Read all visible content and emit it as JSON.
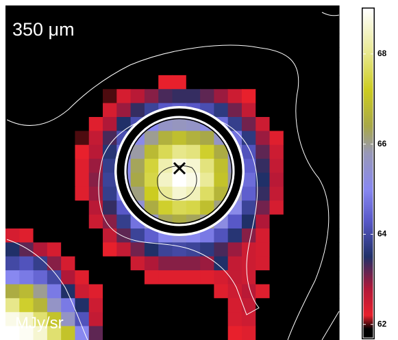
{
  "chart_data": {
    "type": "heatmap",
    "title": "350 μm",
    "colorbar_label": "MJy/sr",
    "zlim": [
      61.7,
      69.0
    ],
    "colorbar_ticks": [
      62,
      64,
      66,
      68
    ],
    "colormap": [
      {
        "value": 61.9,
        "color": "#000000"
      },
      {
        "value": 62.2,
        "color": "#e8202c"
      },
      {
        "value": 62.8,
        "color": "#b01838"
      },
      {
        "value": 63.5,
        "color": "#203068"
      },
      {
        "value": 64.3,
        "color": "#5858c8"
      },
      {
        "value": 65.0,
        "color": "#8888f0"
      },
      {
        "value": 65.8,
        "color": "#9898b8"
      },
      {
        "value": 66.4,
        "color": "#a8a848"
      },
      {
        "value": 67.2,
        "color": "#cccc20"
      },
      {
        "value": 68.1,
        "color": "#eaea98"
      },
      {
        "value": 69.0,
        "color": "#ffffff"
      }
    ],
    "z": [
      [
        61.5,
        61.5,
        61.5,
        61.5,
        61.5,
        61.5,
        61.5,
        61.5,
        61.5,
        61.5,
        61.5,
        61.5,
        61.5,
        61.5,
        61.5,
        61.5,
        61.5,
        61.5,
        61.5,
        61.5,
        61.5,
        61.5,
        61.5,
        61.5
      ],
      [
        61.5,
        61.5,
        61.5,
        61.5,
        61.5,
        61.5,
        61.5,
        61.5,
        61.5,
        61.5,
        61.5,
        61.5,
        61.5,
        61.5,
        61.5,
        61.5,
        61.5,
        61.5,
        61.5,
        61.5,
        61.5,
        61.5,
        61.5,
        61.5
      ],
      [
        61.5,
        61.5,
        61.5,
        61.5,
        61.5,
        61.5,
        61.5,
        61.5,
        61.5,
        61.5,
        61.5,
        61.5,
        61.5,
        61.5,
        61.5,
        61.5,
        61.5,
        61.5,
        61.5,
        61.5,
        61.5,
        61.5,
        61.5,
        61.5
      ],
      [
        61.5,
        61.5,
        61.5,
        61.5,
        61.5,
        61.5,
        61.5,
        61.5,
        61.5,
        61.5,
        61.5,
        61.5,
        61.5,
        61.5,
        61.5,
        61.5,
        61.5,
        61.5,
        61.5,
        61.5,
        61.5,
        61.5,
        61.5,
        61.5
      ],
      [
        61.5,
        61.5,
        61.5,
        61.5,
        61.5,
        61.5,
        61.5,
        61.5,
        61.5,
        61.5,
        61.5,
        61.5,
        61.5,
        61.5,
        61.5,
        61.5,
        61.5,
        61.5,
        61.5,
        61.5,
        61.5,
        61.5,
        61.5,
        61.5
      ],
      [
        61.5,
        61.5,
        61.5,
        61.5,
        61.5,
        61.5,
        61.5,
        61.5,
        61.5,
        61.5,
        61.5,
        62.2,
        62.2,
        61.5,
        61.5,
        61.5,
        61.5,
        61.5,
        61.5,
        61.5,
        61.5,
        61.5,
        61.5,
        61.5
      ],
      [
        61.5,
        61.5,
        61.5,
        61.5,
        61.5,
        61.5,
        61.5,
        62.0,
        62.4,
        62.7,
        63.0,
        63.3,
        63.4,
        63.4,
        63.2,
        62.9,
        62.5,
        62.2,
        61.5,
        61.5,
        61.5,
        61.5,
        61.5,
        61.5
      ],
      [
        61.5,
        61.5,
        61.5,
        61.5,
        61.5,
        61.5,
        61.9,
        62.4,
        62.9,
        63.4,
        63.9,
        64.3,
        64.4,
        64.3,
        64.1,
        63.7,
        63.1,
        62.6,
        61.5,
        61.5,
        61.5,
        61.5,
        61.5,
        61.5
      ],
      [
        61.5,
        61.5,
        61.5,
        61.5,
        61.5,
        61.5,
        62.3,
        62.8,
        63.5,
        64.1,
        65.0,
        65.6,
        65.7,
        65.6,
        65.2,
        64.6,
        63.8,
        63.1,
        62.5,
        61.5,
        61.5,
        61.5,
        61.5,
        61.5
      ],
      [
        61.5,
        61.5,
        61.5,
        61.5,
        61.5,
        62.0,
        62.6,
        63.3,
        64.1,
        65.1,
        66.0,
        66.6,
        66.9,
        66.6,
        66.4,
        65.6,
        64.7,
        63.7,
        62.9,
        62.3,
        61.5,
        61.5,
        61.5,
        61.5
      ],
      [
        61.5,
        61.5,
        61.5,
        61.5,
        61.5,
        62.2,
        62.7,
        63.6,
        64.6,
        65.9,
        66.8,
        67.6,
        68.0,
        67.9,
        67.3,
        66.5,
        65.3,
        64.2,
        63.2,
        62.5,
        61.5,
        61.5,
        61.5,
        61.5
      ],
      [
        61.5,
        61.5,
        61.5,
        61.5,
        61.5,
        62.3,
        62.9,
        63.8,
        65.0,
        66.3,
        67.4,
        68.3,
        68.8,
        68.6,
        67.9,
        66.9,
        65.7,
        64.4,
        63.4,
        62.6,
        61.5,
        61.5,
        61.5,
        61.5
      ],
      [
        61.5,
        61.5,
        61.5,
        61.5,
        61.5,
        62.3,
        63.0,
        63.9,
        65.1,
        66.4,
        67.5,
        68.5,
        69.0,
        68.8,
        68.1,
        67.0,
        65.9,
        64.6,
        63.5,
        62.7,
        61.5,
        61.5,
        61.5,
        61.5
      ],
      [
        61.5,
        61.5,
        61.5,
        61.5,
        61.5,
        62.3,
        62.9,
        63.8,
        64.8,
        66.1,
        67.2,
        68.1,
        68.6,
        68.4,
        67.7,
        66.7,
        65.6,
        64.4,
        63.4,
        62.6,
        61.5,
        61.5,
        61.5,
        61.5
      ],
      [
        61.5,
        61.5,
        61.5,
        61.5,
        61.5,
        61.5,
        62.7,
        63.4,
        64.3,
        65.4,
        66.5,
        67.3,
        67.6,
        67.5,
        66.9,
        66.1,
        65.1,
        63.9,
        63.1,
        62.4,
        61.5,
        61.5,
        61.5,
        61.5
      ],
      [
        61.5,
        61.5,
        61.5,
        61.5,
        61.5,
        61.5,
        62.5,
        63.0,
        63.8,
        64.7,
        65.6,
        66.3,
        66.5,
        66.3,
        66.0,
        65.2,
        64.3,
        63.5,
        62.8,
        61.5,
        61.5,
        61.5,
        61.5,
        61.5
      ],
      [
        62.4,
        62.3,
        61.5,
        61.5,
        61.5,
        61.5,
        61.5,
        62.6,
        63.2,
        63.9,
        64.4,
        65.0,
        65.2,
        65.0,
        64.8,
        64.2,
        63.6,
        63.0,
        62.4,
        61.5,
        61.5,
        61.5,
        61.5,
        61.5
      ],
      [
        63.5,
        63.2,
        62.8,
        62.4,
        61.5,
        61.5,
        61.5,
        62.2,
        62.6,
        63.1,
        63.5,
        63.9,
        64.0,
        63.9,
        63.7,
        63.3,
        62.9,
        62.5,
        62.4,
        61.5,
        61.5,
        61.5,
        61.5,
        61.5
      ],
      [
        64.0,
        64.2,
        63.8,
        63.0,
        62.4,
        61.5,
        61.5,
        61.5,
        61.5,
        62.5,
        62.8,
        63.0,
        63.0,
        63.0,
        62.9,
        63.5,
        62.6,
        62.5,
        62.4,
        61.5,
        61.5,
        61.5,
        61.5,
        61.5
      ],
      [
        65.0,
        64.8,
        64.5,
        64.0,
        62.8,
        62.3,
        61.5,
        61.5,
        61.5,
        61.5,
        62.3,
        62.3,
        62.3,
        62.3,
        62.3,
        62.4,
        62.6,
        62.5,
        61.5,
        61.5,
        61.5,
        61.5,
        61.5,
        61.5
      ],
      [
        66.5,
        66.8,
        66.0,
        64.8,
        63.5,
        62.5,
        62.3,
        61.5,
        61.5,
        61.5,
        61.5,
        61.5,
        61.5,
        61.5,
        61.5,
        62.3,
        62.5,
        62.7,
        62.3,
        61.5,
        61.5,
        61.5,
        61.5,
        61.5
      ],
      [
        68.0,
        67.3,
        66.7,
        65.6,
        64.8,
        63.5,
        62.5,
        61.5,
        61.5,
        61.5,
        61.5,
        61.5,
        61.5,
        61.5,
        61.5,
        61.5,
        62.4,
        62.6,
        61.5,
        61.5,
        61.5,
        61.5,
        61.5,
        61.5
      ],
      [
        68.8,
        68.5,
        67.8,
        67.0,
        65.6,
        64.2,
        62.6,
        61.5,
        61.5,
        61.5,
        61.5,
        61.5,
        61.5,
        61.5,
        61.5,
        61.5,
        62.4,
        62.5,
        61.5,
        61.5,
        61.5,
        61.5,
        61.5,
        61.5
      ],
      [
        69.0,
        68.9,
        68.6,
        67.8,
        67.0,
        65.0,
        63.2,
        61.5,
        61.5,
        61.5,
        61.5,
        61.5,
        61.5,
        61.5,
        61.5,
        61.5,
        62.2,
        62.3,
        61.5,
        61.5,
        61.5,
        61.5,
        61.5,
        61.5
      ]
    ]
  }
}
